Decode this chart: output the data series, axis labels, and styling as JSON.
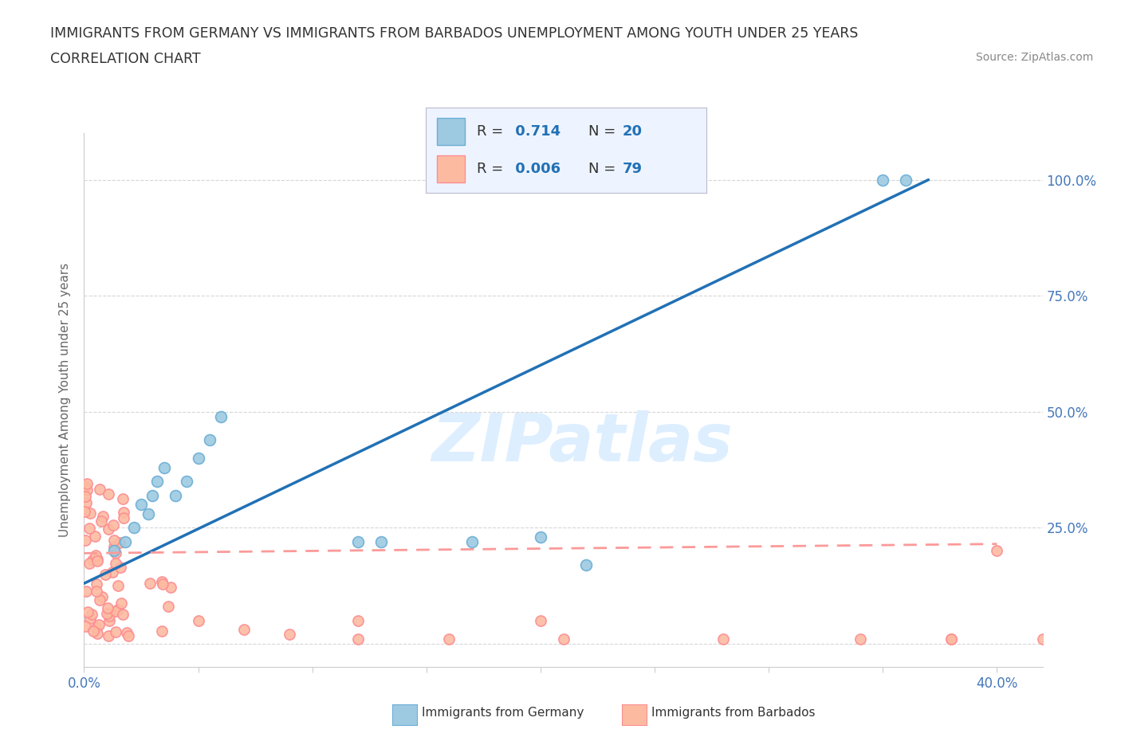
{
  "title_line1": "IMMIGRANTS FROM GERMANY VS IMMIGRANTS FROM BARBADOS UNEMPLOYMENT AMONG YOUTH UNDER 25 YEARS",
  "title_line2": "CORRELATION CHART",
  "source": "Source: ZipAtlas.com",
  "ylabel": "Unemployment Among Youth under 25 years",
  "xlim": [
    0.0,
    0.42
  ],
  "ylim": [
    -0.05,
    1.1
  ],
  "xticks": [
    0.0,
    0.05,
    0.1,
    0.15,
    0.2,
    0.25,
    0.3,
    0.35,
    0.4
  ],
  "yticks": [
    0.0,
    0.25,
    0.5,
    0.75,
    1.0
  ],
  "germany_color": "#9ecae1",
  "germany_edge_color": "#6baed6",
  "barbados_color": "#fcbba1",
  "barbados_edge_color": "#fc8d92",
  "germany_trend_color": "#2171b5",
  "barbados_trend_color": "#fb9a99",
  "background_color": "#ffffff",
  "grid_color": "#cccccc",
  "watermark_color": "#ddeeff",
  "R_germany": 0.714,
  "N_germany": 20,
  "R_barbados": 0.006,
  "N_barbados": 79,
  "germany_scatter_x": [
    0.013,
    0.018,
    0.022,
    0.025,
    0.028,
    0.03,
    0.032,
    0.035,
    0.04,
    0.045,
    0.05,
    0.055,
    0.06,
    0.12,
    0.13,
    0.17,
    0.2,
    0.22,
    0.35,
    0.36
  ],
  "germany_scatter_y": [
    0.2,
    0.22,
    0.25,
    0.3,
    0.28,
    0.32,
    0.35,
    0.38,
    0.32,
    0.35,
    0.4,
    0.44,
    0.49,
    0.22,
    0.22,
    0.22,
    0.23,
    0.17,
    1.0,
    1.0
  ],
  "germany_trendline_x": [
    0.0,
    0.37
  ],
  "germany_trendline_y": [
    0.13,
    1.0
  ],
  "barbados_trendline_x": [
    0.0,
    0.4
  ],
  "barbados_trendline_y": [
    0.195,
    0.215
  ],
  "legend_box_color": "#eef4ff",
  "legend_border_color": "#bbbbcc",
  "axis_label_color": "#4477bb",
  "title_color": "#333333",
  "source_color": "#888888"
}
